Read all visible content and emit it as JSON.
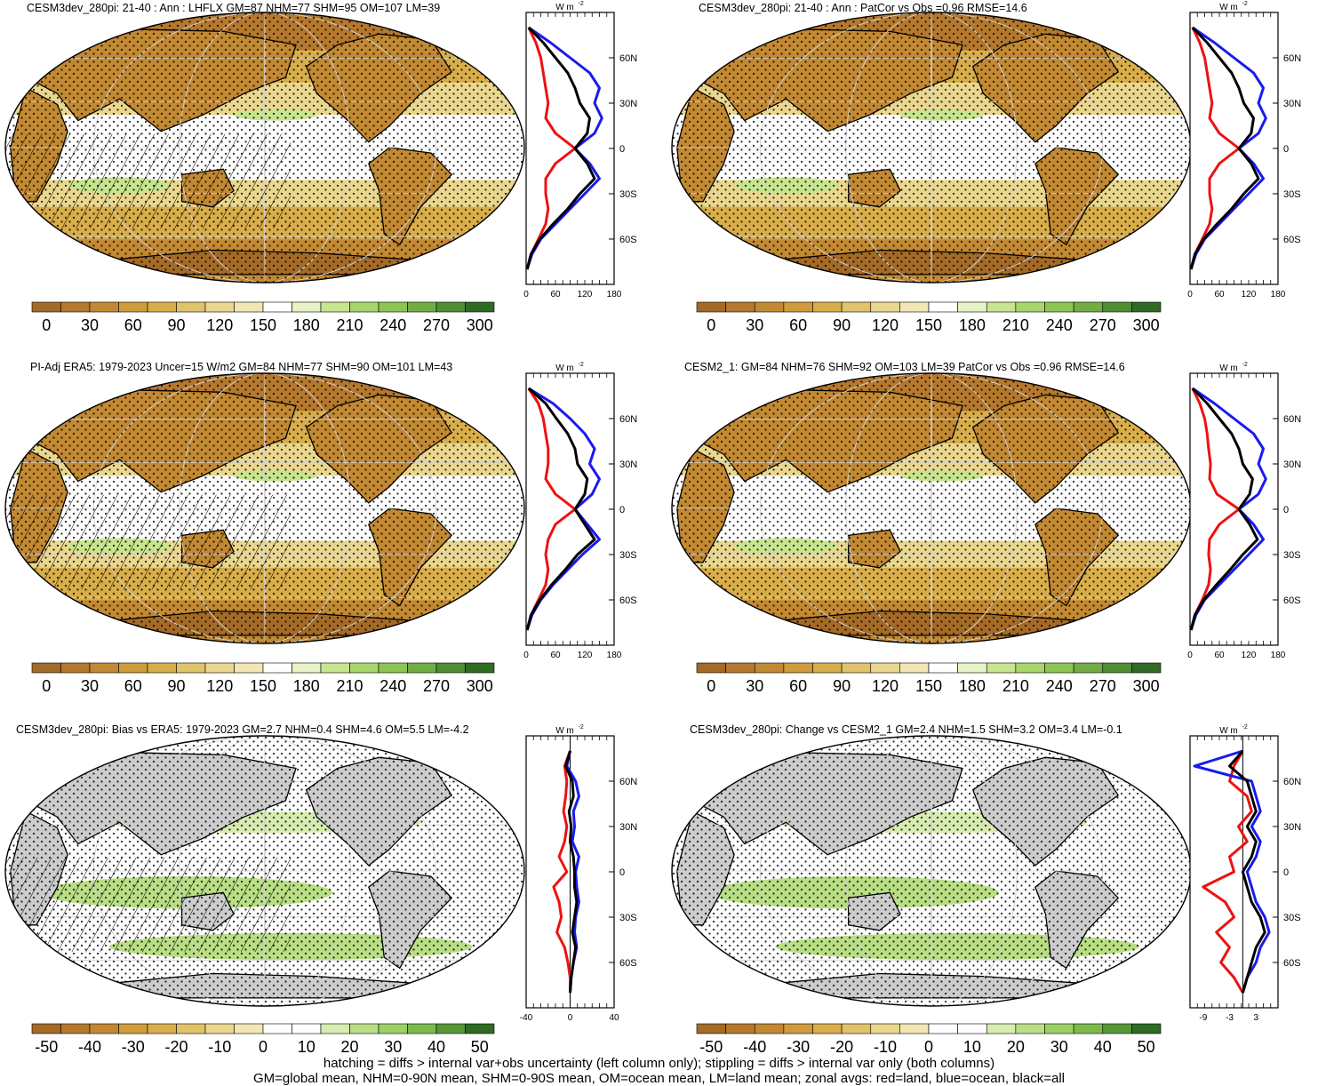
{
  "chart_data": [
    {
      "type": "map",
      "id": "p1",
      "title": "CESM3dev_280pi: 21-40 : Ann : LHFLX GM=87 NHM=77 SHM=95 OM=107 LM=39",
      "map_style": "abs",
      "hatch": true,
      "colorbar": {
        "ticks": [
          "0",
          "30",
          "60",
          "90",
          "120",
          "150",
          "180",
          "210",
          "240",
          "270",
          "300"
        ]
      },
      "zonal": {
        "unit_label": "W m",
        "unit_exp": "-2",
        "xlim": [
          0,
          180
        ],
        "xticks": [
          "0",
          "60",
          "120",
          "180"
        ],
        "yticks": [
          "60N",
          "30N",
          "0",
          "30S",
          "60S"
        ],
        "lat": [
          80,
          70,
          60,
          50,
          40,
          30,
          20,
          10,
          0,
          -10,
          -20,
          -30,
          -40,
          -50,
          -60,
          -70,
          -80
        ],
        "series": [
          {
            "name": "land",
            "color": "#ee1111",
            "values": [
              5,
              20,
              30,
              35,
              40,
              45,
              40,
              60,
              100,
              60,
              40,
              40,
              45,
              40,
              25,
              10,
              2
            ]
          },
          {
            "name": "ocean",
            "color": "#1a1aee",
            "values": [
              5,
              50,
              90,
              130,
              150,
              140,
              155,
              140,
              100,
              130,
              150,
              120,
              90,
              60,
              30,
              12,
              2
            ]
          },
          {
            "name": "all",
            "color": "#000000",
            "values": [
              5,
              35,
              60,
              85,
              100,
              110,
              130,
              125,
              100,
              125,
              140,
              110,
              85,
              55,
              28,
              10,
              2
            ]
          }
        ]
      }
    },
    {
      "type": "map",
      "id": "p2",
      "title": "CESM3dev_280pi: 21-40 : Ann : PatCor vs Obs =0.96 RMSE=14.6",
      "map_style": "abs",
      "hatch": false,
      "colorbar": {
        "ticks": [
          "0",
          "30",
          "60",
          "90",
          "120",
          "150",
          "180",
          "210",
          "240",
          "270",
          "300"
        ]
      },
      "zonal": {
        "unit_label": "W m",
        "unit_exp": "-2",
        "xlim": [
          0,
          180
        ],
        "xticks": [
          "0",
          "60",
          "120",
          "180"
        ],
        "yticks": [
          "60N",
          "30N",
          "0",
          "30S",
          "60S"
        ],
        "lat": [
          80,
          70,
          60,
          50,
          40,
          30,
          20,
          10,
          0,
          -10,
          -20,
          -30,
          -40,
          -50,
          -60,
          -70,
          -80
        ],
        "series": [
          {
            "name": "land",
            "color": "#ee1111",
            "values": [
              5,
              20,
              30,
              35,
              40,
              45,
              40,
              60,
              100,
              60,
              40,
              40,
              45,
              40,
              25,
              10,
              2
            ]
          },
          {
            "name": "ocean",
            "color": "#1a1aee",
            "values": [
              5,
              50,
              90,
              130,
              150,
              140,
              155,
              140,
              100,
              130,
              150,
              120,
              90,
              60,
              30,
              12,
              2
            ]
          },
          {
            "name": "all",
            "color": "#000000",
            "values": [
              5,
              35,
              60,
              85,
              100,
              110,
              130,
              125,
              100,
              125,
              140,
              110,
              85,
              55,
              28,
              10,
              2
            ]
          }
        ]
      }
    },
    {
      "type": "map",
      "id": "p3",
      "title": "PI-Adj ERA5: 1979-2023 Uncer=15 W/m2 GM=84 NHM=77 SHM=90 OM=101 LM=43",
      "map_style": "abs",
      "hatch": true,
      "colorbar": {
        "ticks": [
          "0",
          "30",
          "60",
          "90",
          "120",
          "150",
          "180",
          "210",
          "240",
          "270",
          "300"
        ]
      },
      "zonal": {
        "unit_label": "W m",
        "unit_exp": "-2",
        "xlim": [
          0,
          180
        ],
        "xticks": [
          "0",
          "60",
          "120",
          "180"
        ],
        "yticks": [
          "60N",
          "30N",
          "0",
          "30S",
          "60S"
        ],
        "lat": [
          80,
          70,
          60,
          50,
          40,
          30,
          20,
          10,
          0,
          -10,
          -20,
          -30,
          -40,
          -50,
          -60,
          -70,
          -80
        ],
        "series": [
          {
            "name": "land",
            "color": "#ee1111",
            "values": [
              5,
              25,
              35,
              40,
              45,
              45,
              40,
              60,
              100,
              60,
              45,
              40,
              45,
              40,
              25,
              10,
              2
            ]
          },
          {
            "name": "ocean",
            "color": "#1a1aee",
            "values": [
              5,
              55,
              90,
              120,
              140,
              130,
              150,
              135,
              100,
              125,
              150,
              115,
              85,
              55,
              30,
              12,
              2
            ]
          },
          {
            "name": "all",
            "color": "#000000",
            "values": [
              5,
              40,
              62,
              85,
              100,
              105,
              125,
              120,
              100,
              120,
              140,
              105,
              80,
              52,
              28,
              10,
              2
            ]
          }
        ]
      }
    },
    {
      "type": "map",
      "id": "p4",
      "title": "CESM2_1: GM=84 NHM=76 SHM=92 OM=103 LM=39 PatCor vs Obs =0.96 RMSE=14.6",
      "map_style": "abs",
      "hatch": false,
      "colorbar": {
        "ticks": [
          "0",
          "30",
          "60",
          "90",
          "120",
          "150",
          "180",
          "210",
          "240",
          "270",
          "300"
        ]
      },
      "zonal": {
        "unit_label": "W m",
        "unit_exp": "-2",
        "xlim": [
          0,
          180
        ],
        "xticks": [
          "0",
          "60",
          "120",
          "180"
        ],
        "yticks": [
          "60N",
          "30N",
          "0",
          "30S",
          "60S"
        ],
        "lat": [
          80,
          70,
          60,
          50,
          40,
          30,
          20,
          10,
          0,
          -10,
          -20,
          -30,
          -40,
          -50,
          -60,
          -70,
          -80
        ],
        "series": [
          {
            "name": "land",
            "color": "#ee1111",
            "values": [
              5,
              20,
              30,
              35,
              38,
              42,
              40,
              55,
              100,
              60,
              40,
              38,
              42,
              38,
              25,
              10,
              2
            ]
          },
          {
            "name": "ocean",
            "color": "#1a1aee",
            "values": [
              5,
              50,
              90,
              130,
              150,
              140,
              155,
              140,
              100,
              130,
              150,
              120,
              90,
              60,
              30,
              12,
              2
            ]
          },
          {
            "name": "all",
            "color": "#000000",
            "values": [
              5,
              35,
              60,
              85,
              100,
              108,
              128,
              122,
              100,
              122,
              138,
              108,
              82,
              54,
              28,
              10,
              2
            ]
          }
        ]
      }
    },
    {
      "type": "map",
      "id": "p5",
      "title": "CESM3dev_280pi: Bias vs ERA5: 1979-2023 GM=2.7 NHM=0.4 SHM=4.6 OM=5.5 LM=-4.2",
      "map_style": "diff",
      "hatch": true,
      "colorbar": {
        "ticks": [
          "-50",
          "-40",
          "-30",
          "-20",
          "-10",
          "0",
          "10",
          "20",
          "30",
          "40",
          "50"
        ]
      },
      "zonal": {
        "unit_label": "W m",
        "unit_exp": "-2",
        "xlim": [
          -40,
          40
        ],
        "xticks": [
          "-40",
          "0",
          "40"
        ],
        "yticks": [
          "60N",
          "30N",
          "0",
          "30S",
          "60S"
        ],
        "lat": [
          80,
          70,
          60,
          50,
          40,
          30,
          20,
          10,
          0,
          -10,
          -20,
          -30,
          -40,
          -50,
          -60,
          -70,
          -80
        ],
        "series": [
          {
            "name": "land",
            "color": "#ee1111",
            "values": [
              0,
              -5,
              -3,
              -4,
              -6,
              -3,
              -5,
              -10,
              -3,
              -15,
              -10,
              -8,
              -12,
              -5,
              -2,
              0,
              0
            ]
          },
          {
            "name": "ocean",
            "color": "#1a1aee",
            "values": [
              0,
              -3,
              5,
              8,
              3,
              4,
              2,
              8,
              5,
              6,
              8,
              5,
              4,
              6,
              3,
              1,
              0
            ]
          },
          {
            "name": "all",
            "color": "#000000",
            "values": [
              0,
              -4,
              2,
              3,
              -1,
              1,
              0,
              3,
              4,
              4,
              6,
              4,
              2,
              5,
              3,
              1,
              0
            ]
          }
        ]
      }
    },
    {
      "type": "map",
      "id": "p6",
      "title": "CESM3dev_280pi: Change vs CESM2_1 GM=2.4 NHM=1.5 SHM=3.2 OM=3.4 LM=-0.1",
      "map_style": "diff",
      "hatch": false,
      "colorbar": {
        "ticks": [
          "-50",
          "-40",
          "-30",
          "-20",
          "-10",
          "0",
          "10",
          "20",
          "30",
          "40",
          "50"
        ]
      },
      "zonal": {
        "unit_label": "W m",
        "unit_exp": "-2",
        "xlim": [
          -12,
          8
        ],
        "xticks": [
          "-9",
          "-3",
          "3"
        ],
        "yticks": [
          "60N",
          "30N",
          "0",
          "30S",
          "60S"
        ],
        "lat": [
          80,
          70,
          60,
          50,
          40,
          30,
          20,
          10,
          0,
          -10,
          -20,
          -30,
          -40,
          -50,
          -60,
          -70,
          -80
        ],
        "series": [
          {
            "name": "land",
            "color": "#ee1111",
            "values": [
              0,
              -2,
              -3,
              1,
              2,
              -1,
              1,
              -3,
              -2,
              -9,
              -4,
              -2,
              -6,
              -3,
              -5,
              -2,
              0
            ]
          },
          {
            "name": "ocean",
            "color": "#1a1aee",
            "values": [
              0,
              -11,
              2,
              3,
              4,
              2,
              4,
              3,
              1,
              2,
              3,
              5,
              6,
              4,
              3,
              1,
              0
            ]
          },
          {
            "name": "all",
            "color": "#000000",
            "values": [
              0,
              -3,
              1,
              2,
              3,
              1,
              3,
              2,
              0,
              1,
              2,
              4,
              5,
              3,
              2,
              1,
              0
            ]
          }
        ]
      }
    }
  ],
  "footer": {
    "line1": "hatching = diffs > internal var+obs uncertainty (left column only); stippling = diffs > internal var only (both columns)",
    "line2": "GM=global mean, NHM=0-90N mean, SHM=0-90S mean, OM=ocean mean, LM=land mean; zonal avgs: red=land, blue=ocean, black=all"
  },
  "palette": {
    "abs": [
      "#a46a27",
      "#b4782e",
      "#c28934",
      "#cf9b3c",
      "#d8ad4b",
      "#e1c36c",
      "#ead78f",
      "#f2e7b4",
      "#ffffff",
      "#e7f3c4",
      "#c7e58f",
      "#a8d66b",
      "#8dc553",
      "#70ae44",
      "#4f8e34",
      "#2f6b25"
    ],
    "diff": [
      "#a46a27",
      "#b4782e",
      "#c28934",
      "#cf9b3c",
      "#d8ad4b",
      "#e1c36c",
      "#ead78f",
      "#f2e7b4",
      "#ffffff",
      "#ffffff",
      "#d7ecb0",
      "#b9de85",
      "#9bd064",
      "#7cba4d",
      "#56973a",
      "#2f6b25"
    ],
    "land_gray": "#cccccc"
  }
}
